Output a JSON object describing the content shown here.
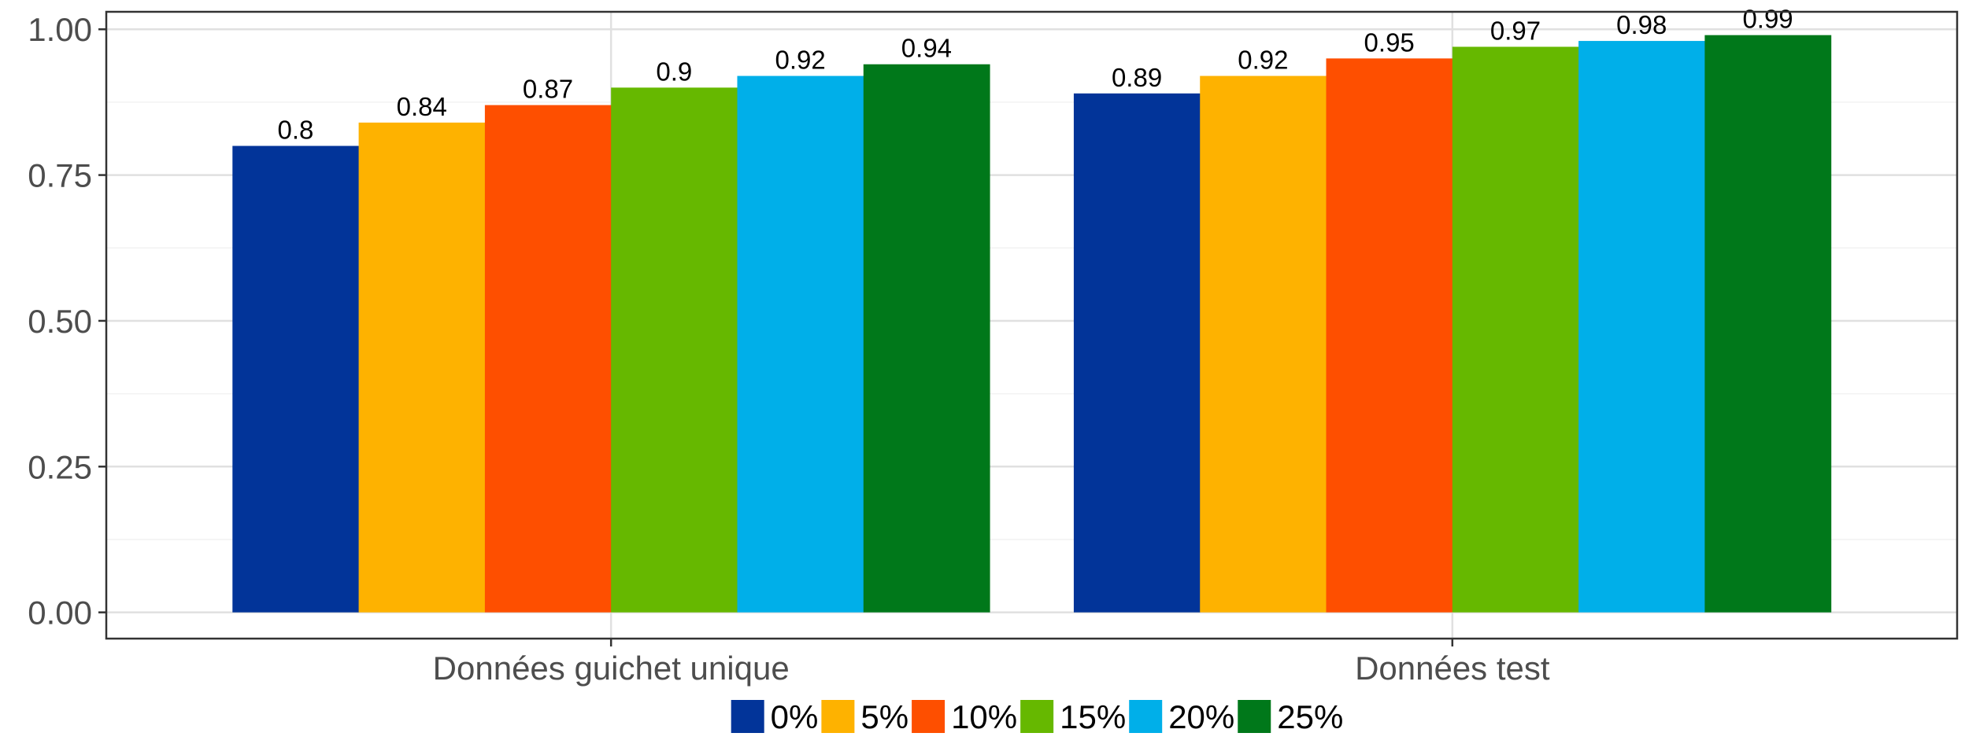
{
  "chart_data": {
    "type": "bar",
    "title": "",
    "xlabel": "",
    "ylabel": "",
    "categories": [
      "Données guichet unique",
      "Données test"
    ],
    "series": [
      {
        "name": "0%",
        "color": "#023499",
        "values": [
          0.8,
          0.89
        ]
      },
      {
        "name": "5%",
        "color": "#FEB200",
        "values": [
          0.84,
          0.92
        ]
      },
      {
        "name": "10%",
        "color": "#FE4F00",
        "values": [
          0.87,
          0.95
        ]
      },
      {
        "name": "15%",
        "color": "#66B800",
        "values": [
          0.9,
          0.97
        ]
      },
      {
        "name": "20%",
        "color": "#00AFE9",
        "values": [
          0.92,
          0.98
        ]
      },
      {
        "name": "25%",
        "color": "#00781A",
        "values": [
          0.94,
          0.99
        ]
      }
    ],
    "data_labels": [
      [
        "0.8",
        "0.84",
        "0.87",
        "0.9",
        "0.92",
        "0.94"
      ],
      [
        "0.89",
        "0.92",
        "0.95",
        "0.97",
        "0.98",
        "0.99"
      ]
    ],
    "y_ticks": [
      {
        "value": 0.0,
        "label": "0.00"
      },
      {
        "value": 0.25,
        "label": "0.25"
      },
      {
        "value": 0.5,
        "label": "0.50"
      },
      {
        "value": 0.75,
        "label": "0.75"
      },
      {
        "value": 1.0,
        "label": "1.00"
      }
    ],
    "ylim": [
      -0.045,
      1.03
    ],
    "grid": true,
    "legend_position": "bottom"
  }
}
